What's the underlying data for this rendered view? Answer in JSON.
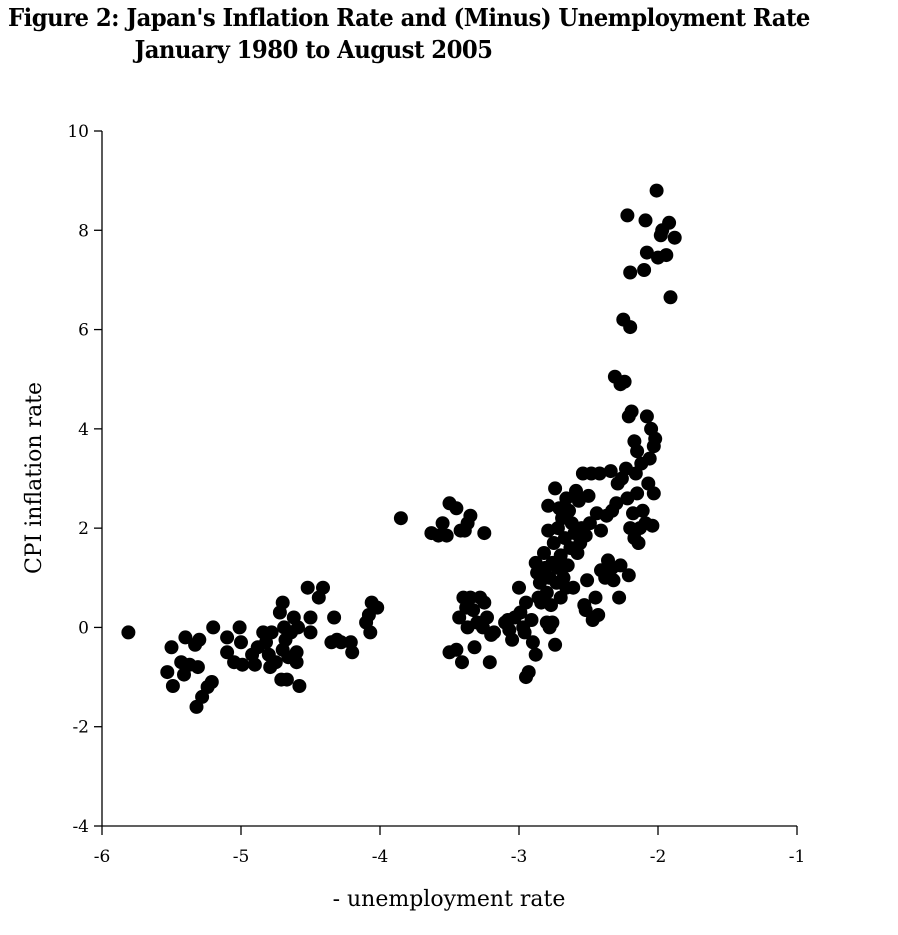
{
  "title": {
    "line1": "Figure 2: Japan's Inflation Rate and (Minus) Unemployment Rate",
    "line2": "January 1980 to August 2005"
  },
  "chart_data": {
    "type": "scatter",
    "title": "Figure 2: Japan's Inflation Rate and (Minus) Unemployment Rate January 1980 to August 2005",
    "xlabel": "- unemployment rate",
    "ylabel": "CPI inflation rate",
    "xlim": [
      -6,
      -1
    ],
    "ylim": [
      -4,
      10
    ],
    "xticks": [
      -6,
      -5,
      -4,
      -3,
      -2,
      -1
    ],
    "yticks": [
      -4,
      -2,
      0,
      2,
      4,
      6,
      8,
      10
    ],
    "grid": false,
    "legend": null,
    "marker": {
      "shape": "circle",
      "color": "#000000",
      "radius_px": 7
    },
    "points": [
      [
        -5.81,
        -0.1
      ],
      [
        -5.53,
        -0.9
      ],
      [
        -5.49,
        -1.18
      ],
      [
        -5.5,
        -0.4
      ],
      [
        -5.43,
        -0.7
      ],
      [
        -5.41,
        -0.95
      ],
      [
        -5.4,
        -0.2
      ],
      [
        -5.37,
        -0.75
      ],
      [
        -5.33,
        -0.35
      ],
      [
        -5.31,
        -0.8
      ],
      [
        -5.3,
        -0.25
      ],
      [
        -5.32,
        -1.6
      ],
      [
        -5.28,
        -1.4
      ],
      [
        -5.24,
        -1.2
      ],
      [
        -5.21,
        -1.1
      ],
      [
        -5.2,
        0.0
      ],
      [
        -5.1,
        -0.2
      ],
      [
        -5.1,
        -0.5
      ],
      [
        -5.05,
        -0.7
      ],
      [
        -5.01,
        0.0
      ],
      [
        -5.0,
        -0.3
      ],
      [
        -4.99,
        -0.75
      ],
      [
        -4.92,
        -0.55
      ],
      [
        -4.9,
        -0.75
      ],
      [
        -4.88,
        -0.4
      ],
      [
        -4.84,
        -0.1
      ],
      [
        -4.82,
        -0.3
      ],
      [
        -4.8,
        -0.55
      ],
      [
        -4.79,
        -0.8
      ],
      [
        -4.78,
        -0.1
      ],
      [
        -4.75,
        -0.7
      ],
      [
        -4.72,
        0.3
      ],
      [
        -4.71,
        -1.05
      ],
      [
        -4.7,
        0.5
      ],
      [
        -4.7,
        -0.45
      ],
      [
        -4.69,
        0.0
      ],
      [
        -4.68,
        -0.25
      ],
      [
        -4.67,
        -1.05
      ],
      [
        -4.66,
        -0.6
      ],
      [
        -4.64,
        -0.1
      ],
      [
        -4.62,
        0.2
      ],
      [
        -4.6,
        -0.7
      ],
      [
        -4.6,
        -0.5
      ],
      [
        -4.59,
        0.0
      ],
      [
        -4.58,
        -1.18
      ],
      [
        -4.52,
        0.8
      ],
      [
        -4.5,
        0.2
      ],
      [
        -4.5,
        -0.1
      ],
      [
        -4.44,
        0.6
      ],
      [
        -4.41,
        0.8
      ],
      [
        -4.35,
        -0.3
      ],
      [
        -4.33,
        0.2
      ],
      [
        -4.31,
        -0.25
      ],
      [
        -4.28,
        -0.3
      ],
      [
        -4.21,
        -0.3
      ],
      [
        -4.2,
        -0.5
      ],
      [
        -4.1,
        0.1
      ],
      [
        -4.08,
        0.25
      ],
      [
        -4.07,
        -0.1
      ],
      [
        -4.06,
        0.5
      ],
      [
        -4.02,
        0.4
      ],
      [
        -3.85,
        2.2
      ],
      [
        -3.63,
        1.9
      ],
      [
        -3.58,
        1.85
      ],
      [
        -3.55,
        2.1
      ],
      [
        -3.52,
        1.85
      ],
      [
        -3.5,
        2.5
      ],
      [
        -3.45,
        2.4
      ],
      [
        -3.42,
        1.95
      ],
      [
        -3.39,
        1.95
      ],
      [
        -3.37,
        2.1
      ],
      [
        -3.35,
        2.25
      ],
      [
        -3.25,
        1.9
      ],
      [
        -3.5,
        -0.5
      ],
      [
        -3.45,
        -0.45
      ],
      [
        -3.43,
        0.2
      ],
      [
        -3.41,
        -0.7
      ],
      [
        -3.4,
        0.6
      ],
      [
        -3.38,
        0.4
      ],
      [
        -3.37,
        0.0
      ],
      [
        -3.35,
        0.6
      ],
      [
        -3.33,
        0.35
      ],
      [
        -3.32,
        -0.4
      ],
      [
        -3.3,
        0.1
      ],
      [
        -3.28,
        0.6
      ],
      [
        -3.26,
        0.0
      ],
      [
        -3.25,
        0.5
      ],
      [
        -3.23,
        0.2
      ],
      [
        -3.21,
        -0.7
      ],
      [
        -3.2,
        -0.15
      ],
      [
        -3.18,
        -0.1
      ],
      [
        -3.1,
        0.1
      ],
      [
        -3.08,
        0.15
      ],
      [
        -3.07,
        -0.05
      ],
      [
        -3.05,
        -0.25
      ],
      [
        -3.03,
        0.2
      ],
      [
        -3.0,
        0.8
      ],
      [
        -2.99,
        0.3
      ],
      [
        -2.97,
        0.0
      ],
      [
        -2.96,
        -0.1
      ],
      [
        -2.95,
        0.5
      ],
      [
        -2.95,
        -1.0
      ],
      [
        -2.93,
        -0.9
      ],
      [
        -2.91,
        0.15
      ],
      [
        -2.9,
        -0.3
      ],
      [
        -2.88,
        -0.55
      ],
      [
        -2.88,
        1.3
      ],
      [
        -2.87,
        1.1
      ],
      [
        -2.86,
        0.6
      ],
      [
        -2.85,
        0.9
      ],
      [
        -2.84,
        0.5
      ],
      [
        -2.82,
        1.5
      ],
      [
        -2.81,
        1.2
      ],
      [
        -2.8,
        0.1
      ],
      [
        -2.8,
        0.7
      ],
      [
        -2.79,
        1.95
      ],
      [
        -2.79,
        2.45
      ],
      [
        -2.78,
        0.0
      ],
      [
        -2.78,
        1.0
      ],
      [
        -2.77,
        0.45
      ],
      [
        -2.76,
        1.3
      ],
      [
        -2.76,
        0.1
      ],
      [
        -2.75,
        1.7
      ],
      [
        -2.74,
        2.8
      ],
      [
        -2.74,
        -0.35
      ],
      [
        -2.73,
        0.9
      ],
      [
        -2.72,
        2.0
      ],
      [
        -2.72,
        1.2
      ],
      [
        -2.71,
        2.4
      ],
      [
        -2.7,
        1.45
      ],
      [
        -2.7,
        0.6
      ],
      [
        -2.69,
        2.2
      ],
      [
        -2.68,
        1.0
      ],
      [
        -2.67,
        1.8
      ],
      [
        -2.66,
        2.6
      ],
      [
        -2.66,
        0.8
      ],
      [
        -2.65,
        1.25
      ],
      [
        -2.64,
        2.35
      ],
      [
        -2.63,
        1.6
      ],
      [
        -2.62,
        2.1
      ],
      [
        -2.61,
        0.8
      ],
      [
        -2.6,
        1.9
      ],
      [
        -2.59,
        2.75
      ],
      [
        -2.58,
        1.5
      ],
      [
        -2.57,
        2.55
      ],
      [
        -2.56,
        1.7
      ],
      [
        -2.55,
        2.0
      ],
      [
        -2.54,
        3.1
      ],
      [
        -2.53,
        0.45
      ],
      [
        -2.52,
        0.35
      ],
      [
        -2.52,
        1.85
      ],
      [
        -2.51,
        0.95
      ],
      [
        -2.5,
        2.65
      ],
      [
        -2.49,
        2.1
      ],
      [
        -2.48,
        3.1
      ],
      [
        -2.47,
        0.15
      ],
      [
        -2.45,
        0.6
      ],
      [
        -2.44,
        2.3
      ],
      [
        -2.43,
        0.25
      ],
      [
        -2.42,
        3.1
      ],
      [
        -2.41,
        1.15
      ],
      [
        -2.41,
        1.95
      ],
      [
        -2.38,
        1.0
      ],
      [
        -2.37,
        2.25
      ],
      [
        -2.36,
        1.35
      ],
      [
        -2.34,
        3.15
      ],
      [
        -2.33,
        1.2
      ],
      [
        -2.33,
        2.35
      ],
      [
        -2.32,
        0.95
      ],
      [
        -2.31,
        5.05
      ],
      [
        -2.3,
        2.5
      ],
      [
        -2.29,
        2.9
      ],
      [
        -2.28,
        0.6
      ],
      [
        -2.27,
        1.25
      ],
      [
        -2.27,
        4.9
      ],
      [
        -2.26,
        3.0
      ],
      [
        -2.25,
        6.2
      ],
      [
        -2.24,
        4.95
      ],
      [
        -2.23,
        3.2
      ],
      [
        -2.22,
        8.3
      ],
      [
        -2.22,
        2.6
      ],
      [
        -2.21,
        1.05
      ],
      [
        -2.21,
        4.25
      ],
      [
        -2.2,
        7.15
      ],
      [
        -2.2,
        6.05
      ],
      [
        -2.2,
        2.0
      ],
      [
        -2.19,
        4.35
      ],
      [
        -2.18,
        2.3
      ],
      [
        -2.17,
        3.75
      ],
      [
        -2.17,
        1.8
      ],
      [
        -2.16,
        3.1
      ],
      [
        -2.15,
        3.55
      ],
      [
        -2.15,
        2.7
      ],
      [
        -2.14,
        1.7
      ],
      [
        -2.13,
        2.0
      ],
      [
        -2.12,
        3.3
      ],
      [
        -2.11,
        2.35
      ],
      [
        -2.1,
        7.2
      ],
      [
        -2.09,
        8.2
      ],
      [
        -2.09,
        2.1
      ],
      [
        -2.08,
        4.25
      ],
      [
        -2.08,
        7.55
      ],
      [
        -2.07,
        2.9
      ],
      [
        -2.06,
        3.4
      ],
      [
        -2.05,
        4.0
      ],
      [
        -2.04,
        2.05
      ],
      [
        -2.03,
        2.7
      ],
      [
        -2.03,
        3.65
      ],
      [
        -2.02,
        3.8
      ],
      [
        -2.01,
        8.8
      ],
      [
        -2.0,
        7.45
      ],
      [
        -1.98,
        7.9
      ],
      [
        -1.97,
        8.0
      ],
      [
        -1.94,
        7.5
      ],
      [
        -1.92,
        8.15
      ],
      [
        -1.91,
        6.65
      ],
      [
        -1.88,
        7.85
      ]
    ]
  }
}
